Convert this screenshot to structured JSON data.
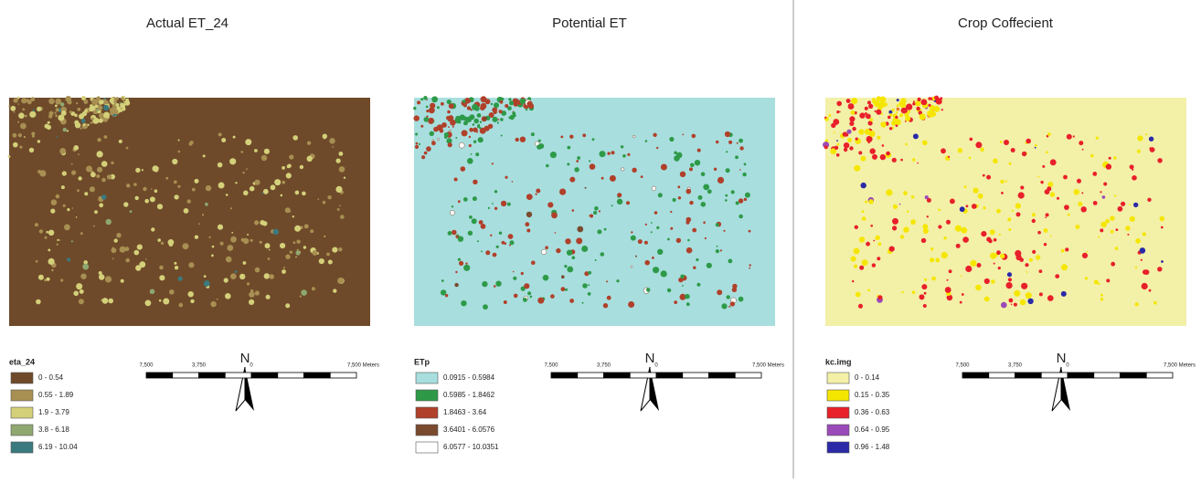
{
  "panels": [
    {
      "title": "Actual ET_24",
      "map_color": "#6e4a2a",
      "legend": {
        "title": "eta_24",
        "items": [
          {
            "label": "0 - 0.54",
            "color": "#6e4a2a"
          },
          {
            "label": "0.55 - 1.89",
            "color": "#a88f52"
          },
          {
            "label": "1.9 - 3.79",
            "color": "#d4d07a"
          },
          {
            "label": "3.8 - 6.18",
            "color": "#8ea870"
          },
          {
            "label": "6.19 - 10.04",
            "color": "#3a7a7e"
          }
        ]
      },
      "north": "N",
      "scale": [
        "7,500",
        "3,750",
        "0",
        "7,500 Meters"
      ]
    },
    {
      "title": "Potential ET",
      "map_color": "#a8dede",
      "legend": {
        "title": "ETp",
        "items": [
          {
            "label": "0.0915 - 0.5984",
            "color": "#a8dede"
          },
          {
            "label": "0.5985 - 1.8462",
            "color": "#2e9a48"
          },
          {
            "label": "1.8463 - 3.64",
            "color": "#b0402a"
          },
          {
            "label": "3.6401 - 6.0576",
            "color": "#7a4a2e"
          },
          {
            "label": "6.0577 - 10.0351",
            "color": "#ffffff"
          }
        ]
      },
      "north": "N",
      "scale": [
        "7,500",
        "3,750",
        "0",
        "7,500 Meters"
      ]
    },
    {
      "title": "Crop Coffecient",
      "map_color": "#f3f0a8",
      "legend": {
        "title": "kc.img",
        "items": [
          {
            "label": "0 - 0.14",
            "color": "#f3f0a8"
          },
          {
            "label": "0.15 - 0.35",
            "color": "#f5e600"
          },
          {
            "label": "0.36 - 0.63",
            "color": "#e8202a"
          },
          {
            "label": "0.64 - 0.95",
            "color": "#9a4ab8"
          },
          {
            "label": "0.96 - 1.48",
            "color": "#2a2aa8"
          }
        ]
      },
      "north": "N",
      "scale": [
        "7,500",
        "3,750",
        "0",
        "7,500 Meters"
      ]
    }
  ]
}
